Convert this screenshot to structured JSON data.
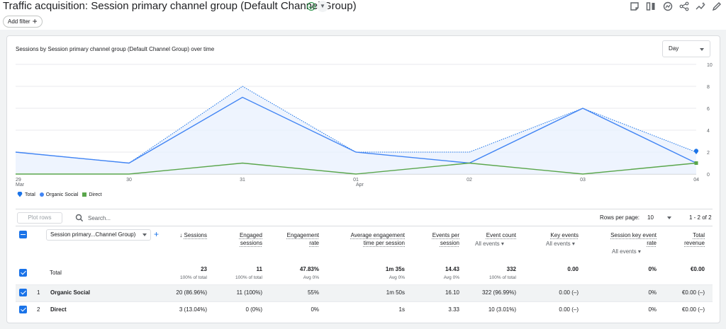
{
  "header": {
    "title": "Traffic acquisition: Session primary channel group (Default Channel Group)",
    "add_filter": "Add filter"
  },
  "chart": {
    "title": "Sessions by Session primary channel group (Default Channel Group) over time",
    "granularity": "Day",
    "legend": [
      "Total",
      "Organic Social",
      "Direct"
    ]
  },
  "chart_data": {
    "type": "line",
    "x": [
      "29 Mar",
      "30",
      "31",
      "01 Apr",
      "02",
      "03",
      "04"
    ],
    "x_ticks": [
      {
        "label": "29",
        "sub": "Mar"
      },
      {
        "label": "30",
        "sub": ""
      },
      {
        "label": "31",
        "sub": ""
      },
      {
        "label": "01",
        "sub": "Apr"
      },
      {
        "label": "02",
        "sub": ""
      },
      {
        "label": "03",
        "sub": ""
      },
      {
        "label": "04",
        "sub": ""
      }
    ],
    "y_ticks": [
      "0",
      "2",
      "4",
      "6",
      "8",
      "10"
    ],
    "ylim": [
      0,
      10
    ],
    "grid": true,
    "legend_position": "bottom-left",
    "series": [
      {
        "name": "Total",
        "values": [
          2,
          1,
          8,
          2,
          2,
          6,
          2
        ],
        "color": "#1a73e8",
        "style": "dotted"
      },
      {
        "name": "Organic Social",
        "values": [
          2,
          1,
          7,
          2,
          1,
          6,
          1
        ],
        "color": "#4285f4",
        "style": "solid"
      },
      {
        "name": "Direct",
        "values": [
          0,
          0,
          1,
          0,
          1,
          0,
          1
        ],
        "color": "#5aa64b",
        "style": "solid"
      }
    ]
  },
  "table": {
    "plot_rows": "Plot rows",
    "search_placeholder": "Search...",
    "rows_per_page_label": "Rows per page:",
    "rows_per_page": "10",
    "pagination": "1 - 2 of 2",
    "dimension": "Session primary...Channel Group)",
    "columns": {
      "sessions": "Sessions",
      "engaged": [
        "Engaged",
        "sessions"
      ],
      "engagement_rate": [
        "Engagement",
        "rate"
      ],
      "avg_time": [
        "Average engagement",
        "time per session"
      ],
      "events_per": [
        "Events per",
        "session"
      ],
      "event_count": "Event count",
      "key_events": "Key events",
      "session_key": [
        "Session key event",
        "rate"
      ],
      "revenue": [
        "Total",
        "revenue"
      ],
      "all_events": "All events"
    },
    "total": {
      "label": "Total",
      "sessions": "23",
      "sessions_sub": "100% of total",
      "engaged": "11",
      "engaged_sub": "100% of total",
      "rate": "47.83%",
      "rate_sub": "Avg 0%",
      "avg_time": "1m 35s",
      "avg_time_sub": "Avg 0%",
      "events_per": "14.43",
      "events_per_sub": "Avg 0%",
      "event_count": "332",
      "event_count_sub": "100% of total",
      "key_events": "0.00",
      "key_rate": "0%",
      "revenue": "€0.00"
    },
    "rows": [
      {
        "idx": "1",
        "name": "Organic Social",
        "sessions": "20 (86.96%)",
        "engaged": "11 (100%)",
        "rate": "55%",
        "avg_time": "1m 50s",
        "events_per": "16.10",
        "event_count": "322 (96.99%)",
        "key_events": "0.00 (–)",
        "key_rate": "0%",
        "revenue": "€0.00 (–)"
      },
      {
        "idx": "2",
        "name": "Direct",
        "sessions": "3 (13.04%)",
        "engaged": "0 (0%)",
        "rate": "0%",
        "avg_time": "1s",
        "events_per": "3.33",
        "event_count": "10 (3.01%)",
        "key_events": "0.00 (–)",
        "key_rate": "0%",
        "revenue": "€0.00 (–)"
      }
    ]
  }
}
